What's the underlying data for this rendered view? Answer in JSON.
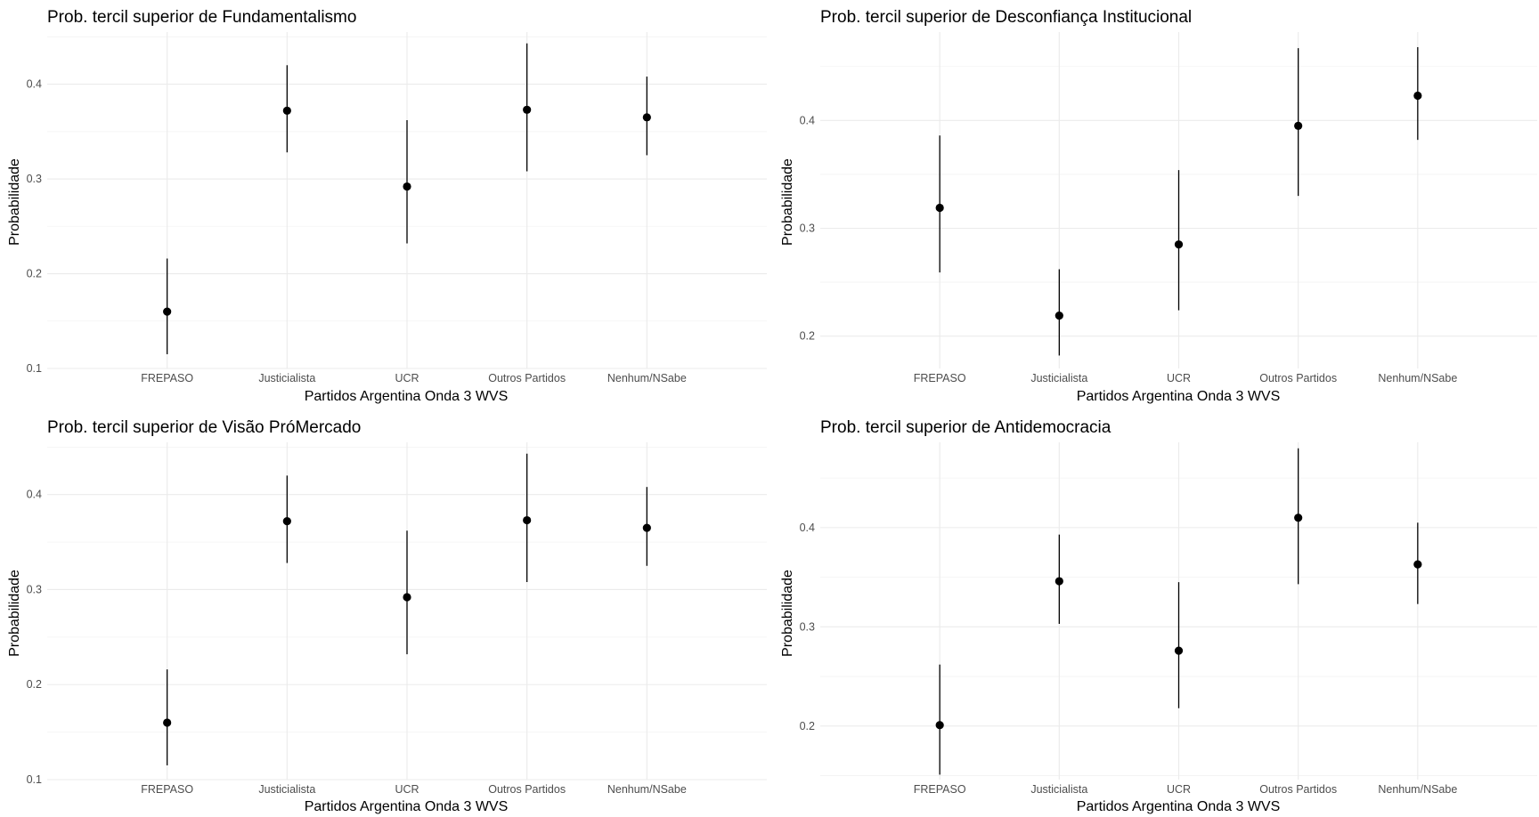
{
  "chart_data": [
    {
      "type": "scatter",
      "title": "Prob. tercil superior de Fundamentalismo",
      "xlabel": "Partidos Argentina Onda 3 WVS",
      "ylabel": "Probabilidade",
      "categories": [
        "FREPASO",
        "Justicialista",
        "UCR",
        "Outros Partidos",
        "Nenhum/NSabe"
      ],
      "values": [
        0.16,
        0.372,
        0.292,
        0.373,
        0.365
      ],
      "lower": [
        0.115,
        0.328,
        0.232,
        0.308,
        0.325
      ],
      "upper": [
        0.216,
        0.42,
        0.362,
        0.443,
        0.408
      ],
      "yticks": [
        0.1,
        0.2,
        0.3,
        0.4
      ],
      "ytick_labels": [
        "0.1",
        "0.2",
        "0.3",
        "0.4"
      ],
      "ylim": [
        0.1,
        0.455
      ],
      "grid": true
    },
    {
      "type": "scatter",
      "title": "Prob. tercil superior de Desconfiança Institucional",
      "xlabel": "Partidos Argentina Onda 3 WVS",
      "ylabel": "Probabilidade",
      "categories": [
        "FREPASO",
        "Justicialista",
        "UCR",
        "Outros Partidos",
        "Nenhum/NSabe"
      ],
      "values": [
        0.319,
        0.219,
        0.285,
        0.395,
        0.423
      ],
      "lower": [
        0.259,
        0.182,
        0.224,
        0.33,
        0.382
      ],
      "upper": [
        0.386,
        0.262,
        0.354,
        0.467,
        0.468
      ],
      "yticks": [
        0.2,
        0.3,
        0.4
      ],
      "ytick_labels": [
        "0.2",
        "0.3",
        "0.4"
      ],
      "ylim": [
        0.17,
        0.482
      ],
      "grid": true
    },
    {
      "type": "scatter",
      "title": "Prob. tercil superior de Visão PróMercado",
      "xlabel": "Partidos Argentina Onda 3 WVS",
      "ylabel": "Probabilidade",
      "categories": [
        "FREPASO",
        "Justicialista",
        "UCR",
        "Outros Partidos",
        "Nenhum/NSabe"
      ],
      "values": [
        0.16,
        0.372,
        0.292,
        0.373,
        0.365
      ],
      "lower": [
        0.115,
        0.328,
        0.232,
        0.308,
        0.325
      ],
      "upper": [
        0.216,
        0.42,
        0.362,
        0.443,
        0.408
      ],
      "yticks": [
        0.1,
        0.2,
        0.3,
        0.4
      ],
      "ytick_labels": [
        "0.1",
        "0.2",
        "0.3",
        "0.4"
      ],
      "ylim": [
        0.1,
        0.455
      ],
      "grid": true
    },
    {
      "type": "scatter",
      "title": "Prob. tercil superior de Antidemocracia",
      "xlabel": "Partidos Argentina Onda 3 WVS",
      "ylabel": "Probabilidade",
      "categories": [
        "FREPASO",
        "Justicialista",
        "UCR",
        "Outros Partidos",
        "Nenhum/NSabe"
      ],
      "values": [
        0.201,
        0.346,
        0.276,
        0.41,
        0.363
      ],
      "lower": [
        0.151,
        0.303,
        0.218,
        0.343,
        0.323
      ],
      "upper": [
        0.262,
        0.393,
        0.345,
        0.48,
        0.405
      ],
      "yticks": [
        0.2,
        0.3,
        0.4
      ],
      "ytick_labels": [
        "0.2",
        "0.3",
        "0.4"
      ],
      "ylim": [
        0.146,
        0.486
      ],
      "grid": true
    }
  ]
}
